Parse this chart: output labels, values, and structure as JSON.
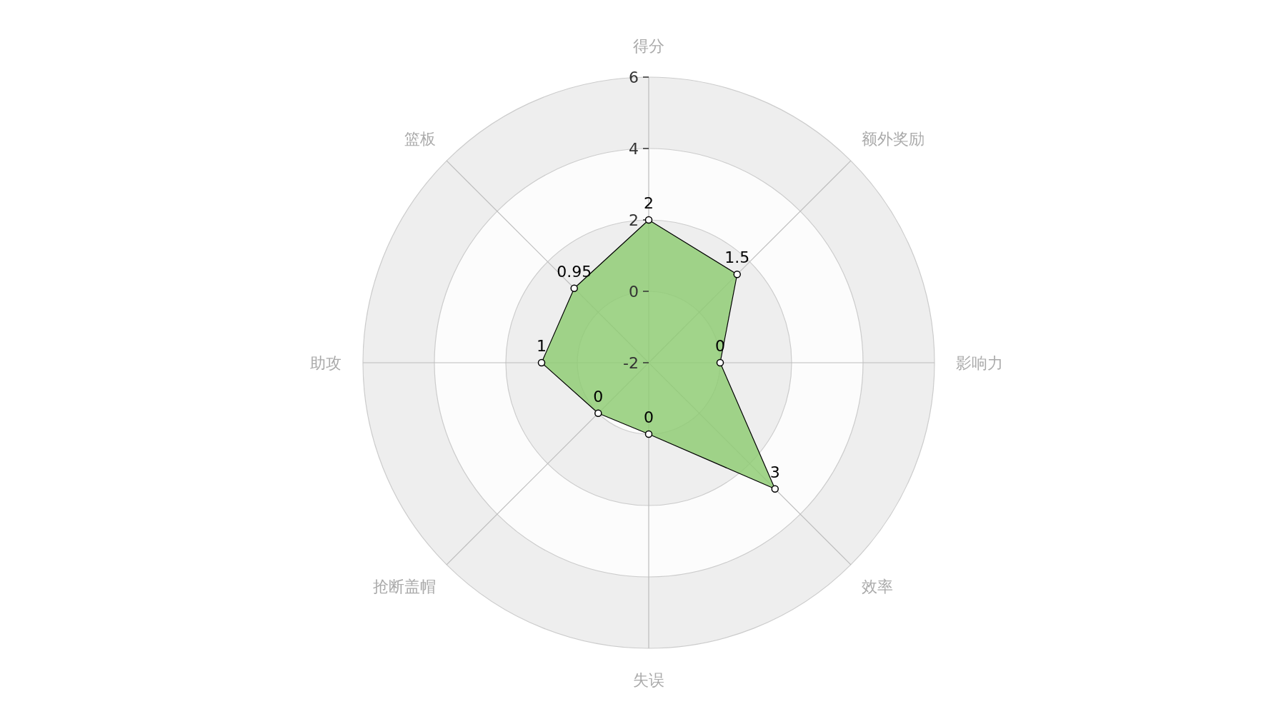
{
  "chart_data": {
    "type": "radar",
    "categories": [
      "得分",
      "额外奖励",
      "影响力",
      "效率",
      "失误",
      "抢断盖帽",
      "助攻",
      "篮板"
    ],
    "series": [
      {
        "color": "#91cc75",
        "values": [
          2,
          1.5,
          0,
          3,
          0,
          0,
          1,
          0.95
        ]
      }
    ],
    "ylim": [
      -2,
      6
    ],
    "yticks": [
      -2,
      0,
      2,
      4,
      6
    ],
    "grid": true,
    "marker": "circle",
    "data_labels": true
  }
}
